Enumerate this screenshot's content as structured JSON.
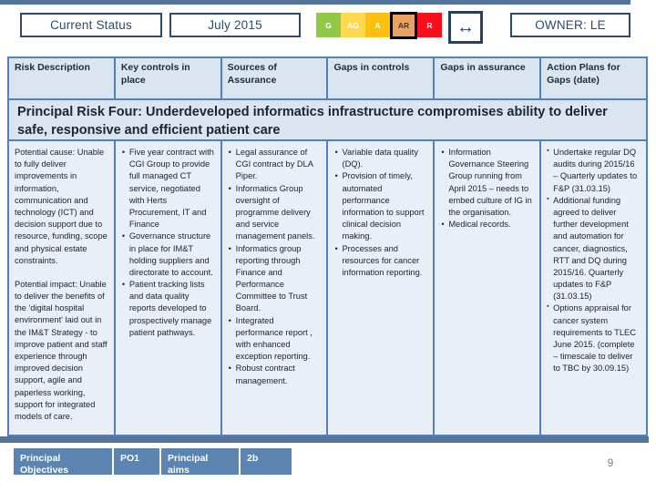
{
  "status_row": {
    "current_status_label": "Current Status",
    "period_label": "July 2015",
    "rag": {
      "items": [
        {
          "label": "G",
          "color": "#92c847",
          "text_color": "#ffffff",
          "selected": false
        },
        {
          "label": "AG",
          "color": "#ffd94d",
          "text_color": "#ffffff",
          "selected": false
        },
        {
          "label": "A",
          "color": "#fdbf10",
          "text_color": "#ffffff",
          "selected": false
        },
        {
          "label": "AR",
          "color": "#eca25f",
          "text_color": "#3a3a3a",
          "selected": true
        },
        {
          "label": "R",
          "color": "#fb0d1b",
          "text_color": "#ffffff",
          "selected": false
        }
      ]
    },
    "trend_arrow": "↔",
    "owner_label": "OWNER: LE"
  },
  "table": {
    "headers": [
      "Risk Description",
      "Key controls in place",
      "Sources of Assurance",
      "Gaps in controls",
      "Gaps in assurance",
      "Action Plans for Gaps (date)"
    ],
    "risk_title": "Principal Risk Four: Underdeveloped informatics infrastructure compromises ability to deliver safe, responsive and efficient patient care",
    "columns": {
      "risk_description": {
        "paragraphs": [
          "Potential cause: Unable to fully deliver improvements in information, communication and technology (ICT) and decision support due to resource, funding, scope and physical estate constraints.",
          "Potential impact: Unable to deliver the benefits of the 'digital hospital environment' laid out in the IM&T Strategy -  to improve patient and staff experience through improved decision support, agile and paperless working, support for integrated models of care."
        ]
      },
      "key_controls": {
        "bullets": [
          "Five year contract with CGI Group to provide full managed CT service, negotiated with Herts Procurement, IT and Finance",
          "Governance structure in place for IM&T holding suppliers and directorate to account.",
          "Patient tracking lists and data quality reports developed to prospectively manage patient pathways."
        ]
      },
      "sources_assurance": {
        "bullets": [
          "Legal assurance of CGI contract by DLA Piper.",
          "Informatics Group oversight of programme delivery and service management panels.",
          "Informatics group reporting through Finance and Performance Committee  to Trust Board.",
          "Integrated performance report , with enhanced exception reporting.",
          "Robust contract management."
        ]
      },
      "gaps_controls": {
        "bullets": [
          "Variable data quality (DQ).",
          "Provision of timely, automated performance information to support clinical decision making.",
          "Processes and resources for cancer information reporting."
        ]
      },
      "gaps_assurance": {
        "bullets": [
          "Information Governance Steering Group running from April 2015 – needs to embed culture of IG in the organisation.",
          "Medical records."
        ]
      },
      "action_plans": {
        "bullets": [
          "Undertake regular DQ audits during 2015/16 – Quarterly updates to F&P (31.03.15)",
          "Additional funding agreed to deliver further development and automation for cancer, diagnostics, RTT and DQ during 2015/16. Quarterly updates to F&P (31.03.15)",
          "Options appraisal for cancer system requirements to TLEC June 2015. (complete – timescale to deliver to TBC by 30.09.15)"
        ]
      }
    }
  },
  "footer": {
    "objectives_label": "Principal Objectives",
    "objectives_value": "PO1",
    "aims_label": "Principal aims",
    "aims_value": "2b"
  },
  "page": {
    "number": "9"
  },
  "colors": {
    "bar": "#54749c",
    "table_border": "#4f81bd",
    "header_bg": "#dbe5f1",
    "cell_bg": "#e9eff7",
    "footer_box_bg": "#5b84b1",
    "frame_border": "#2c4a6e"
  }
}
